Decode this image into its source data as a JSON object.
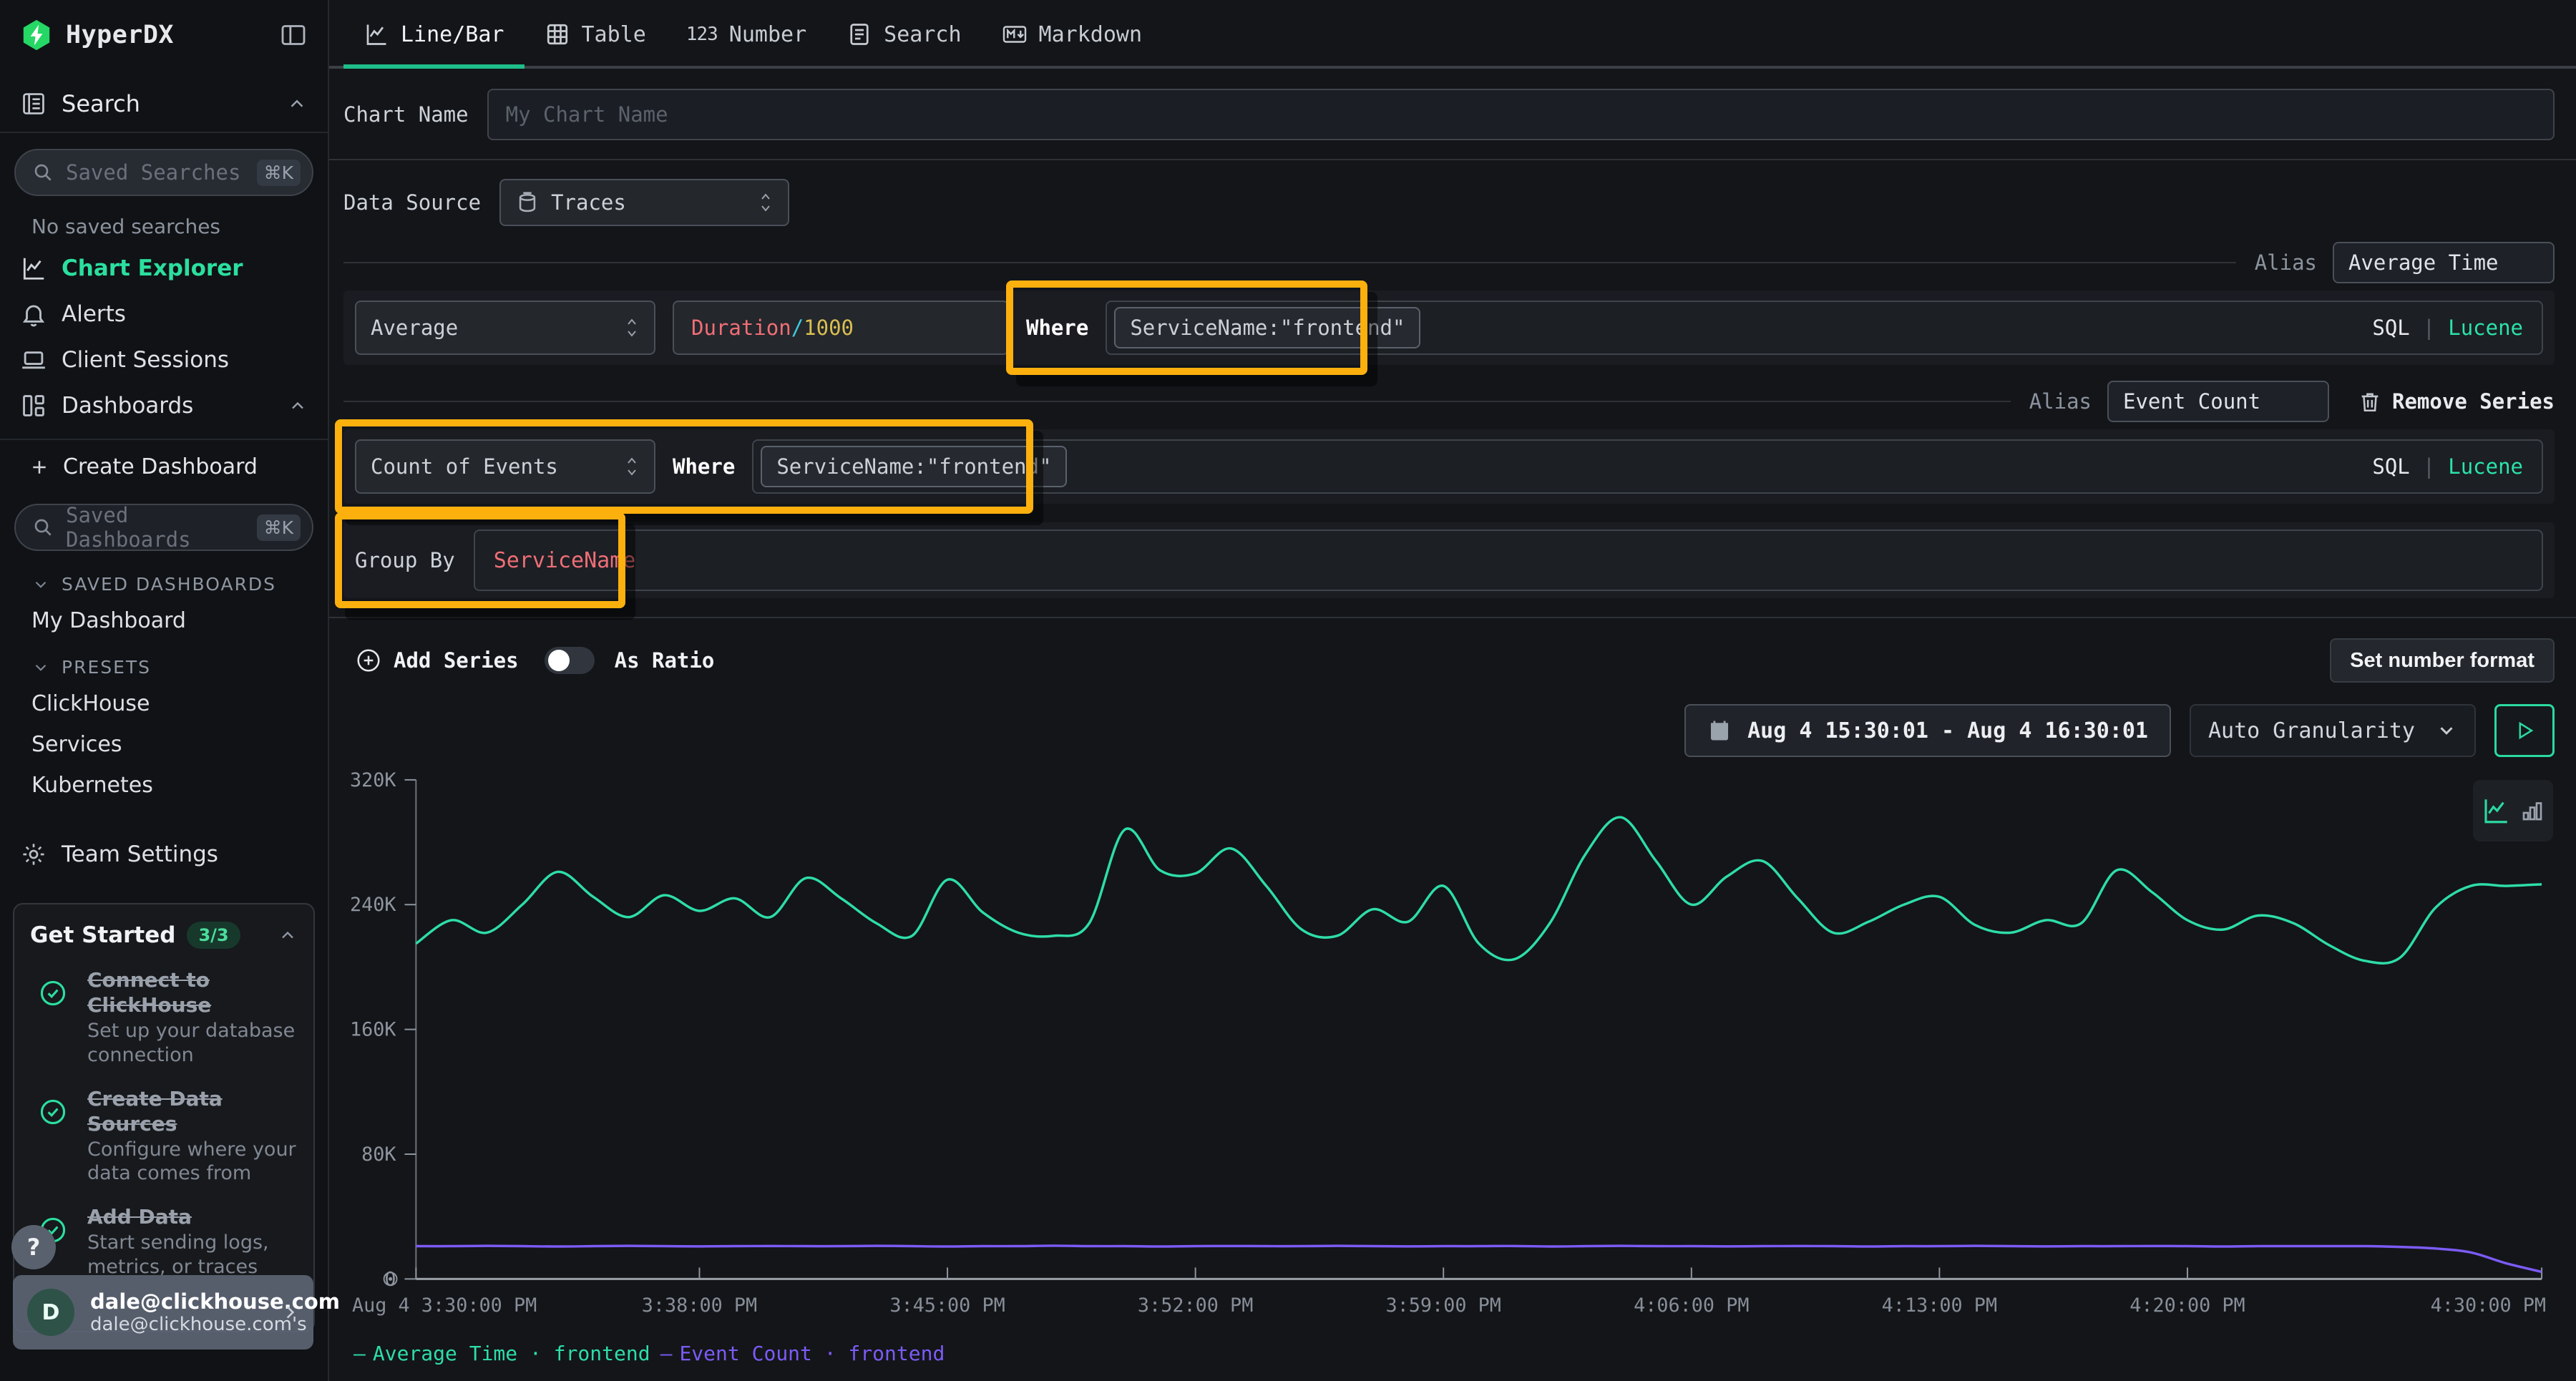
{
  "sidebar": {
    "logo_text": "HyperDX",
    "search_section_label": "Search",
    "saved_searches_placeholder": "Saved Searches",
    "shortcut": "⌘K",
    "no_saved_searches": "No saved searches",
    "nav": [
      {
        "label": "Chart Explorer",
        "icon": "chart-line",
        "active": true
      },
      {
        "label": "Alerts",
        "icon": "bell",
        "active": false
      },
      {
        "label": "Client Sessions",
        "icon": "laptop",
        "active": false
      },
      {
        "label": "Dashboards",
        "icon": "grid",
        "active": false,
        "chevron": "up"
      }
    ],
    "create_dashboard_label": "Create Dashboard",
    "saved_dashboards_placeholder": "Saved Dashboards",
    "groups": [
      {
        "label": "SAVED DASHBOARDS",
        "items": [
          "My Dashboard"
        ]
      },
      {
        "label": "PRESETS",
        "items": [
          "ClickHouse",
          "Services",
          "Kubernetes"
        ]
      }
    ],
    "team_settings_label": "Team Settings",
    "get_started": {
      "title": "Get Started",
      "badge": "3/3",
      "items": [
        {
          "title": "Connect to ClickHouse",
          "desc": "Set up your database connection"
        },
        {
          "title": "Create Data Sources",
          "desc": "Configure where your data comes from"
        },
        {
          "title": "Add Data",
          "desc": "Start sending logs, metrics, or traces"
        }
      ]
    },
    "help_label": "?",
    "user": {
      "initial": "D",
      "email": "dale@clickhouse.com",
      "sub": "dale@clickhouse.com's"
    }
  },
  "tabs": [
    {
      "label": "Line/Bar",
      "icon": "chart-line",
      "active": true
    },
    {
      "label": "Table",
      "icon": "table",
      "active": false
    },
    {
      "label": "Number",
      "icon": "num123",
      "active": false
    },
    {
      "label": "Search",
      "icon": "doc-list",
      "active": false
    },
    {
      "label": "Markdown",
      "icon": "markdown",
      "active": false
    }
  ],
  "form": {
    "chart_name_label": "Chart Name",
    "chart_name_placeholder": "My Chart Name",
    "data_source_label": "Data Source",
    "data_source_value": "Traces",
    "alias_label": "Alias",
    "series": [
      {
        "aggregation": "Average",
        "expr": [
          {
            "text": "Duration",
            "color": "#ef6e76"
          },
          {
            "text": "/",
            "color": "#3ec9dd"
          },
          {
            "text": "1000",
            "color": "#d9bf50"
          }
        ],
        "where_label": "Where",
        "where_value": "ServiceName:\"frontend\"",
        "alias": "Average Time",
        "sql_label": "SQL",
        "sep": "|",
        "lucene_label": "Lucene"
      },
      {
        "aggregation": "Count of Events",
        "where_label": "Where",
        "where_value": "ServiceName:\"frontend\"",
        "alias": "Event Count",
        "remove_label": "Remove Series",
        "sql_label": "SQL",
        "sep": "|",
        "lucene_label": "Lucene"
      }
    ],
    "group_by_label": "Group By",
    "group_by_value": "ServiceName",
    "group_by_color": "#ef6e76",
    "add_series_label": "Add Series",
    "as_ratio_label": "As Ratio",
    "set_number_format_label": "Set number format",
    "date_range": "Aug 4 15:30:01 - Aug 4 16:30:01",
    "granularity": "Auto Granularity"
  },
  "chart_data": {
    "type": "line",
    "title": "",
    "xlabel": "",
    "ylabel": "",
    "grid": false,
    "legend_position": "bottom-left",
    "ylim": [
      0,
      320000
    ],
    "y_tick_labels": [
      "320K",
      "240K",
      "160K",
      "80K",
      "0"
    ],
    "y_tick_values_k": [
      320,
      240,
      160,
      80,
      0
    ],
    "x_window": "Aug 4 15:30:01 - Aug 4 16:30:01",
    "x_tick_minutes": [
      0,
      8,
      15,
      22,
      29,
      36,
      43,
      50,
      60
    ],
    "x_tick_labels": [
      "Aug 4 3:30:00 PM",
      "3:38:00 PM",
      "3:45:00 PM",
      "3:52:00 PM",
      "3:59:00 PM",
      "4:06:00 PM",
      "4:13:00 PM",
      "4:20:00 PM",
      "4:30:00 PM"
    ],
    "sample_interval_minutes": 1,
    "series": [
      {
        "name": "Average Time · frontend",
        "color": "#2edda8",
        "values_k": [
          215,
          230,
          222,
          240,
          261,
          245,
          232,
          246,
          236,
          244,
          232,
          257,
          244,
          228,
          220,
          256,
          235,
          222,
          220,
          228,
          288,
          262,
          260,
          276,
          252,
          224,
          220,
          237,
          229,
          252,
          215,
          205,
          228,
          272,
          296,
          268,
          240,
          258,
          268,
          244,
          222,
          229,
          240,
          245,
          227,
          222,
          230,
          228,
          262,
          248,
          230,
          224,
          233,
          228,
          214,
          204,
          206,
          238,
          252,
          252,
          253
        ]
      },
      {
        "name": "Event Count · frontend",
        "color": "#7c5bf5",
        "values_k": [
          21,
          21,
          21.2,
          21,
          20.8,
          21,
          21.2,
          21,
          20.9,
          21,
          21.1,
          21,
          21,
          21.2,
          21,
          20.8,
          21,
          21,
          21.3,
          21,
          21,
          20.8,
          21,
          21.1,
          21,
          21,
          21.2,
          21,
          20.9,
          21,
          21,
          21.1,
          20.8,
          21,
          21.2,
          21,
          21,
          20.9,
          21,
          21.1,
          21,
          20.8,
          21,
          21,
          21.2,
          21,
          20.9,
          21,
          21,
          21.1,
          21,
          20.8,
          21,
          21,
          21,
          21,
          20.5,
          19.5,
          17,
          10,
          4.5
        ]
      }
    ]
  },
  "annotations": {
    "highlight_color": "#fcb00e"
  }
}
